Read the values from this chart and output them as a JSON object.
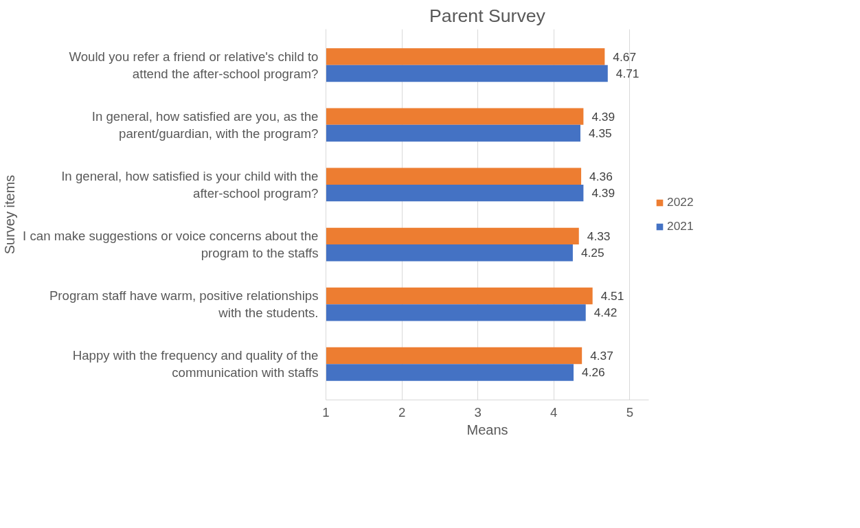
{
  "chart_data": {
    "type": "bar",
    "orientation": "horizontal",
    "title": "Parent Survey",
    "xlabel": "Means",
    "ylabel": "Survey items",
    "categories": [
      "Would you refer a friend or relative's child to attend the after-school program?",
      "In general, how satisfied are you, as the parent/guardian, with the program?",
      "In general, how satisfied is your child with the after-school program?",
      "I can make suggestions or voice concerns about the program to the staffs",
      "Program staff have warm, positive relationships with the students.",
      "Happy with the frequency and quality of the communication with staffs"
    ],
    "series": [
      {
        "name": "2022",
        "color": "#ed7d31",
        "values": [
          4.67,
          4.39,
          4.36,
          4.33,
          4.51,
          4.37
        ]
      },
      {
        "name": "2021",
        "color": "#4472c4",
        "values": [
          4.71,
          4.35,
          4.39,
          4.25,
          4.42,
          4.26
        ]
      }
    ],
    "xlim": [
      1,
      5.25
    ],
    "xticks": [
      1,
      2,
      3,
      4,
      5
    ],
    "grid": "x",
    "legend": "right",
    "data_labels": true
  }
}
